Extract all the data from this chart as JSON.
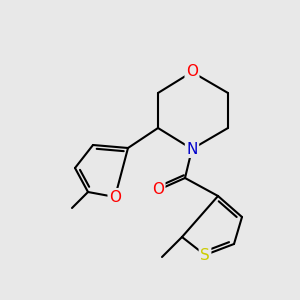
{
  "bg_color": "#e8e8e8",
  "bond_color": "#000000",
  "bond_width": 1.5,
  "atom_colors": {
    "O": "#ff0000",
    "N": "#0000cc",
    "S": "#cccc00",
    "C": "#000000"
  },
  "font_size": 10,
  "figsize": [
    3.0,
    3.0
  ],
  "dpi": 100
}
